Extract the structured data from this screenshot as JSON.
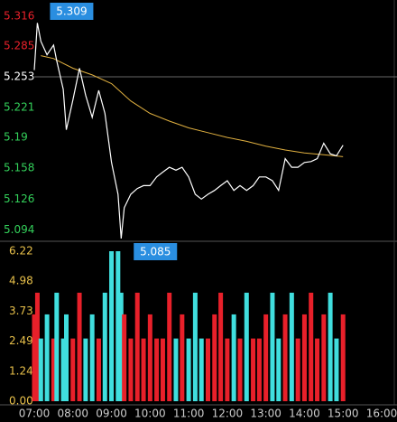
{
  "chart_data": [
    {
      "type": "line",
      "base": 5.253,
      "color": "#ffffff",
      "avg_color": "#e0b040",
      "up_color": "#e8202a",
      "flat_color": "#ffffff",
      "down_color": "#33d05a",
      "x": [
        7,
        7.08,
        7.17,
        7.33,
        7.5,
        7.58,
        7.75,
        7.83,
        8,
        8.17,
        8.33,
        8.5,
        8.67,
        8.83,
        9,
        9.17,
        9.25,
        9.33,
        9.5,
        9.67,
        9.83,
        10,
        10.17,
        10.33,
        10.5,
        10.67,
        10.83,
        11,
        11.17,
        11.33,
        11.5,
        11.67,
        11.83,
        12,
        12.17,
        12.33,
        12.5,
        12.67,
        12.83,
        13,
        13.17,
        13.33,
        13.5,
        13.67,
        13.83,
        14,
        14.17,
        14.33,
        14.5,
        14.67,
        14.83,
        15
      ],
      "values": [
        5.26,
        5.309,
        5.29,
        5.276,
        5.286,
        5.27,
        5.24,
        5.198,
        5.229,
        5.262,
        5.234,
        5.211,
        5.239,
        5.215,
        5.164,
        5.131,
        5.085,
        5.117,
        5.131,
        5.137,
        5.14,
        5.14,
        5.149,
        5.154,
        5.159,
        5.156,
        5.159,
        5.149,
        5.131,
        5.126,
        5.131,
        5.135,
        5.14,
        5.145,
        5.135,
        5.14,
        5.135,
        5.14,
        5.149,
        5.149,
        5.145,
        5.135,
        5.168,
        5.159,
        5.159,
        5.164,
        5.165,
        5.168,
        5.184,
        5.173,
        5.171,
        5.182
      ],
      "avg_x": [
        7.17,
        7.5,
        8,
        8.5,
        9,
        9.5,
        10,
        10.5,
        11,
        11.5,
        12,
        12.5,
        13,
        13.5,
        14,
        14.5,
        15
      ],
      "avg_values": [
        5.275,
        5.272,
        5.262,
        5.255,
        5.246,
        5.228,
        5.215,
        5.207,
        5.2,
        5.195,
        5.19,
        5.186,
        5.181,
        5.177,
        5.174,
        5.172,
        5.17
      ],
      "ylim": [
        5.084,
        5.331
      ],
      "yticks": [
        5.316,
        5.285,
        5.253,
        5.221,
        5.19,
        5.158,
        5.126,
        5.094
      ],
      "xlim": [
        7,
        16
      ]
    },
    {
      "type": "bar",
      "label_color": "#e8c04a",
      "up_color": "#e8202a",
      "down_color": "#40dede",
      "x": [
        7,
        7.08,
        7.17,
        7.33,
        7.5,
        7.58,
        7.75,
        7.83,
        8,
        8.17,
        8.33,
        8.5,
        8.67,
        8.83,
        9,
        9.17,
        9.25,
        9.33,
        9.5,
        9.67,
        9.83,
        10,
        10.17,
        10.33,
        10.5,
        10.67,
        10.83,
        11,
        11.17,
        11.33,
        11.5,
        11.67,
        11.83,
        12,
        12.17,
        12.33,
        12.5,
        12.67,
        12.83,
        13,
        13.17,
        13.33,
        13.5,
        13.67,
        13.83,
        14,
        14.17,
        14.33,
        14.5,
        14.67,
        14.83,
        15
      ],
      "values": [
        3.6,
        4.5,
        2.6,
        3.6,
        2.6,
        4.5,
        2.6,
        3.6,
        2.6,
        4.5,
        2.6,
        3.6,
        2.6,
        4.5,
        6.22,
        6.22,
        4.5,
        3.6,
        2.6,
        4.5,
        2.6,
        3.6,
        2.6,
        2.6,
        4.5,
        2.6,
        3.6,
        2.6,
        4.5,
        2.6,
        2.6,
        3.6,
        4.5,
        2.6,
        3.6,
        2.6,
        4.5,
        2.6,
        2.6,
        3.6,
        4.5,
        2.6,
        3.6,
        4.5,
        2.6,
        3.6,
        4.5,
        2.6,
        3.6,
        4.5,
        2.6,
        3.6
      ],
      "ylim": [
        0,
        6.22
      ],
      "yticks": [
        {
          "value": 6.22,
          "label": "6.22"
        },
        {
          "value": 4.98,
          "label": "4.98"
        },
        {
          "value": 3.73,
          "label": "3.73"
        },
        {
          "value": 2.49,
          "label": "2.49"
        },
        {
          "value": 1.24,
          "label": "1.24"
        },
        {
          "value": 0,
          "label": "0.00"
        }
      ],
      "xlim": [
        7,
        16
      ],
      "xticks": [
        {
          "value": 7,
          "label": "07:00"
        },
        {
          "value": 8,
          "label": "08:00"
        },
        {
          "value": 9,
          "label": "09:00"
        },
        {
          "value": 10,
          "label": "10:00"
        },
        {
          "value": 11,
          "label": "11:00"
        },
        {
          "value": 12,
          "label": "12:00"
        },
        {
          "value": 13,
          "label": "13:00"
        },
        {
          "value": 14,
          "label": "14:00"
        },
        {
          "value": 15,
          "label": "15:00"
        },
        {
          "value": 16,
          "label": "16:00"
        }
      ]
    }
  ]
}
